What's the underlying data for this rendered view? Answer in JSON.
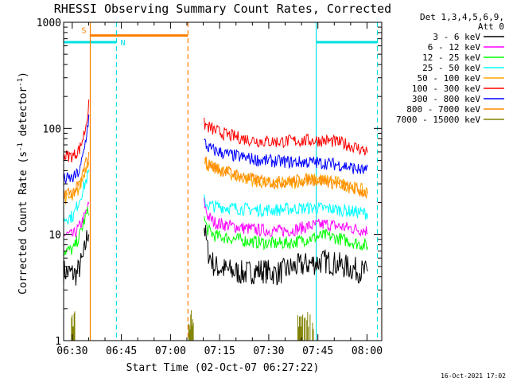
{
  "chart_data": {
    "type": "line",
    "title": "RHESSI Observing Summary Count Rates, Corrected",
    "xlabel": "Start Time (02-Oct-07 06:27:22)",
    "ylabel_main": "Corrected Count Rate (s",
    "ylabel_sup1": "-1",
    "ylabel_mid": " detector",
    "ylabel_sup2": "-1",
    "ylabel_end": ")",
    "xlim": [
      "06:27:22",
      "08:04:30"
    ],
    "ylim": [
      1,
      1000
    ],
    "yscale": "log",
    "x_ticks": [
      {
        "label": "06:30",
        "t": "06:30"
      },
      {
        "label": "06:45",
        "t": "06:45"
      },
      {
        "label": "07:00",
        "t": "07:00"
      },
      {
        "label": "07:15",
        "t": "07:15"
      },
      {
        "label": "07:30",
        "t": "07:30"
      },
      {
        "label": "07:45",
        "t": "07:45"
      },
      {
        "label": "08:00",
        "t": "08:00"
      }
    ],
    "y_ticks": [
      {
        "label": "1",
        "v": 1
      },
      {
        "label": "10",
        "v": 10
      },
      {
        "label": "100",
        "v": 100
      },
      {
        "label": "1000",
        "v": 1000
      }
    ],
    "legend_header": [
      "Det 1,3,4,5,6,9,",
      "Att 0"
    ],
    "legend_placement": "right",
    "series": [
      {
        "name": "3 - 6 keV",
        "color": "#000000",
        "pre": [
          [
            0,
            4.5
          ],
          [
            4,
            4.2
          ],
          [
            6,
            6
          ],
          [
            7,
            9
          ],
          [
            7.9,
            12
          ]
        ],
        "post": [
          [
            42.9,
            12
          ],
          [
            44,
            7
          ],
          [
            46,
            5
          ],
          [
            50,
            4.6
          ],
          [
            55,
            4.3
          ],
          [
            60,
            4.6
          ],
          [
            65,
            4.3
          ],
          [
            70,
            4.9
          ],
          [
            75,
            5.3
          ],
          [
            80,
            5.6
          ],
          [
            85,
            5.1
          ],
          [
            90,
            4.6
          ],
          [
            93,
            4.3
          ]
        ]
      },
      {
        "name": "6 - 12 keV",
        "color": "#ff00ff",
        "pre": [
          [
            0,
            10
          ],
          [
            3,
            9.8
          ],
          [
            5,
            12
          ],
          [
            6.5,
            15
          ],
          [
            7.9,
            20
          ]
        ],
        "post": [
          [
            42.9,
            20
          ],
          [
            44,
            15
          ],
          [
            46,
            13
          ],
          [
            50,
            12.2
          ],
          [
            55,
            11.5
          ],
          [
            60,
            11
          ],
          [
            65,
            10.8
          ],
          [
            70,
            11
          ],
          [
            75,
            12
          ],
          [
            80,
            12.5
          ],
          [
            85,
            11.8
          ],
          [
            90,
            11.2
          ],
          [
            93,
            10.8
          ]
        ]
      },
      {
        "name": "12 - 25 keV",
        "color": "#00ff00",
        "pre": [
          [
            0,
            7
          ],
          [
            3,
            7.2
          ],
          [
            5,
            10
          ],
          [
            6.5,
            14
          ],
          [
            7.9,
            18
          ]
        ],
        "post": [
          [
            42.9,
            14
          ],
          [
            44,
            11
          ],
          [
            46,
            9.8
          ],
          [
            50,
            9.3
          ],
          [
            55,
            8.8
          ],
          [
            60,
            8.4
          ],
          [
            65,
            8.2
          ],
          [
            70,
            8.4
          ],
          [
            75,
            9.2
          ],
          [
            80,
            9.8
          ],
          [
            85,
            9
          ],
          [
            90,
            8.2
          ],
          [
            93,
            7.8
          ]
        ]
      },
      {
        "name": "25 - 50 keV",
        "color": "#00ffff",
        "pre": [
          [
            0,
            14
          ],
          [
            3,
            15
          ],
          [
            5,
            22
          ],
          [
            6.5,
            30
          ],
          [
            7.9,
            40
          ]
        ],
        "post": [
          [
            42.9,
            21
          ],
          [
            44,
            19
          ],
          [
            46,
            18.5
          ],
          [
            50,
            18
          ],
          [
            55,
            17.4
          ],
          [
            60,
            17
          ],
          [
            65,
            17.1
          ],
          [
            70,
            17.5
          ],
          [
            75,
            17.8
          ],
          [
            80,
            17.6
          ],
          [
            85,
            17
          ],
          [
            90,
            16.2
          ],
          [
            93,
            15.8
          ]
        ]
      },
      {
        "name": "50 - 100 keV",
        "color": "#ffa500",
        "pre": [
          [
            0,
            22
          ],
          [
            3,
            22
          ],
          [
            5,
            28
          ],
          [
            6.5,
            40
          ],
          [
            7.9,
            55
          ]
        ],
        "post": [
          [
            42.9,
            50
          ],
          [
            44,
            45
          ],
          [
            46,
            42
          ],
          [
            50,
            38
          ],
          [
            55,
            34
          ],
          [
            60,
            31
          ],
          [
            65,
            30
          ],
          [
            70,
            31
          ],
          [
            75,
            33
          ],
          [
            80,
            33
          ],
          [
            85,
            30
          ],
          [
            90,
            27
          ],
          [
            93,
            25
          ]
        ]
      },
      {
        "name": "100 - 300 keV",
        "color": "#ff0000",
        "pre": [
          [
            0,
            55
          ],
          [
            3,
            55
          ],
          [
            5,
            65
          ],
          [
            6.5,
            95
          ],
          [
            7.9,
            180
          ]
        ],
        "post": [
          [
            42.9,
            110
          ],
          [
            44,
            104
          ],
          [
            46,
            96
          ],
          [
            50,
            87
          ],
          [
            55,
            80
          ],
          [
            60,
            76
          ],
          [
            65,
            75
          ],
          [
            70,
            76
          ],
          [
            75,
            77
          ],
          [
            80,
            77
          ],
          [
            85,
            73
          ],
          [
            90,
            65
          ],
          [
            93,
            60
          ]
        ]
      },
      {
        "name": "300 - 800 keV",
        "color": "#0000ff",
        "pre": [
          [
            0,
            33
          ],
          [
            3,
            34
          ],
          [
            5,
            40
          ],
          [
            6.5,
            70
          ],
          [
            7.9,
            140
          ]
        ],
        "post": [
          [
            42.9,
            75
          ],
          [
            44,
            66
          ],
          [
            46,
            62
          ],
          [
            50,
            57
          ],
          [
            55,
            53
          ],
          [
            60,
            50
          ],
          [
            65,
            49
          ],
          [
            70,
            48
          ],
          [
            75,
            48
          ],
          [
            80,
            47
          ],
          [
            85,
            45
          ],
          [
            90,
            41
          ],
          [
            93,
            39
          ]
        ]
      },
      {
        "name": "800 - 7000 keV",
        "color": "#ff8c00",
        "pre": [
          [
            0,
            25
          ],
          [
            3,
            25
          ],
          [
            5,
            30
          ],
          [
            6.5,
            45
          ],
          [
            7.9,
            55
          ]
        ],
        "post": [
          [
            42.9,
            52
          ],
          [
            44,
            46
          ],
          [
            46,
            43
          ],
          [
            50,
            39
          ],
          [
            55,
            35
          ],
          [
            60,
            32
          ],
          [
            65,
            31
          ],
          [
            70,
            32
          ],
          [
            75,
            33
          ],
          [
            80,
            32
          ],
          [
            85,
            29
          ],
          [
            90,
            26
          ],
          [
            93,
            24
          ]
        ]
      },
      {
        "name": "7000 - 15000 keV",
        "color": "#808000",
        "pre": [],
        "post": []
      }
    ],
    "attenuator_bar": {
      "label": "S",
      "color": "#ff7f00",
      "t_start": "06:35:30",
      "t_end": "07:05:20",
      "level": 750
    },
    "night_bars": [
      {
        "label": "N",
        "color": "#00e0e0",
        "t_start": "06:27:22",
        "t_end": "06:43:30",
        "level": 650
      },
      {
        "label": "",
        "color": "#00e0e0",
        "t_start": "07:44:30",
        "t_end": "08:03:10",
        "level": 650
      }
    ],
    "vertical_lines": [
      {
        "t": "06:35:30",
        "color": "#ff7f00",
        "style": "solid"
      },
      {
        "t": "06:43:30",
        "color": "#00e0e0",
        "style": "dashed"
      },
      {
        "t": "07:05:20",
        "color": "#ff7f00",
        "style": "dashed"
      },
      {
        "t": "07:44:30",
        "color": "#00e0e0",
        "style": "solid"
      },
      {
        "t": "08:03:10",
        "color": "#00e0e0",
        "style": "dashed"
      }
    ]
  },
  "footer_timestamp": "16-Oct-2021 17:02"
}
